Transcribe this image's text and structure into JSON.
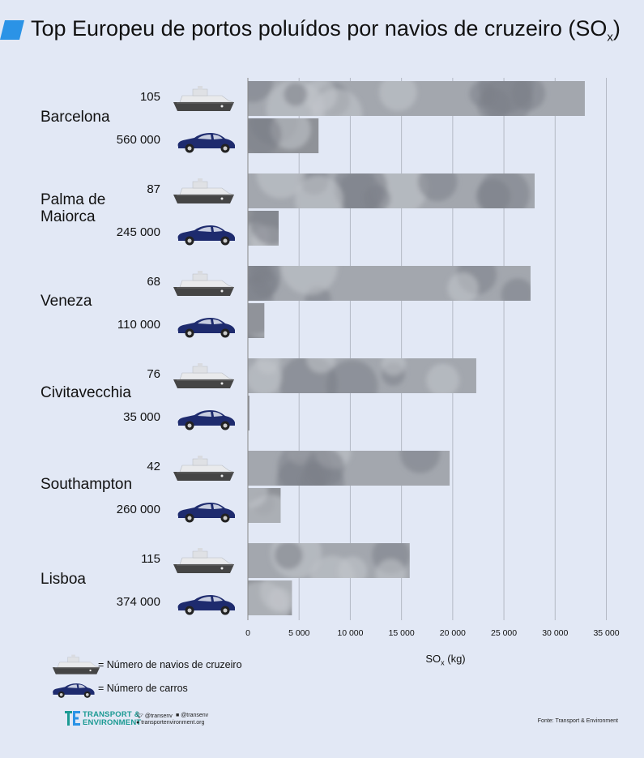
{
  "title": {
    "main": "Top Europeu de portos poluídos por navios de cruzeiro (SO",
    "sub": "x",
    "close": ")"
  },
  "colors": {
    "accent": "#2b93e6",
    "ship_bar": "#a3a7ae",
    "car_bar": "#8f9298",
    "car": "#1e2b6e",
    "ship": "#e9eaec",
    "hull": "#454545",
    "teal": "#1b9a93"
  },
  "chart_data": {
    "type": "bar",
    "orientation": "horizontal",
    "xlabel_main": "SO",
    "xlabel_sub": "x",
    "xlabel_unit": " (kg)",
    "xlim": [
      0,
      35000
    ],
    "xticks": [
      "0",
      "5 000",
      "10 000",
      "15 000",
      "20 000",
      "25 000",
      "30 000",
      "35 000"
    ],
    "categories": [
      "Barcelona",
      "Palma de Maiorca",
      "Veneza",
      "Civitavecchia",
      "Southampton",
      "Lisboa"
    ],
    "series": [
      {
        "key": "ships",
        "counts": [
          "105",
          "87",
          "68",
          "76",
          "42",
          "115"
        ],
        "values": [
          32900,
          28000,
          27600,
          22300,
          19700,
          15800
        ]
      },
      {
        "key": "cars",
        "counts": [
          "560 000",
          "245 000",
          "110 000",
          "35 000",
          "260 000",
          "374 000"
        ],
        "values": [
          6900,
          3000,
          1600,
          150,
          3200,
          4300
        ]
      }
    ]
  },
  "legend": {
    "ships": "= Número de navios de cruzeiro",
    "cars": "= Número de carros"
  },
  "footer": {
    "org_line1": "TRANSPORT &",
    "org_line2": "ENVIRONMENT",
    "twitter": "@transenv",
    "facebook": "@transenv",
    "website": "transportenvironment.org",
    "source": "Fonte: Transport & Environment"
  }
}
